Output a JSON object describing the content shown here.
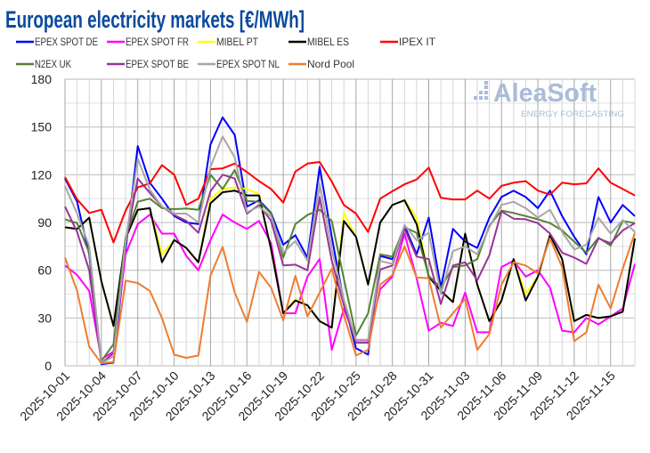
{
  "chart_data": {
    "type": "line",
    "title": "European electricity markets [€/MWh]",
    "xlabel": "",
    "ylabel": "",
    "ylim": [
      0,
      180
    ],
    "yticks": [
      0,
      30,
      60,
      90,
      120,
      150,
      180
    ],
    "grid": true,
    "legend_position": "top",
    "x": [
      "2025-10-01",
      "2025-10-02",
      "2025-10-03",
      "2025-10-04",
      "2025-10-05",
      "2025-10-06",
      "2025-10-07",
      "2025-10-08",
      "2025-10-09",
      "2025-10-10",
      "2025-10-11",
      "2025-10-12",
      "2025-10-13",
      "2025-10-14",
      "2025-10-15",
      "2025-10-16",
      "2025-10-17",
      "2025-10-18",
      "2025-10-19",
      "2025-10-20",
      "2025-10-21",
      "2025-10-22",
      "2025-10-23",
      "2025-10-24",
      "2025-10-25",
      "2025-10-26",
      "2025-10-27",
      "2025-10-28",
      "2025-10-29",
      "2025-10-30",
      "2025-10-31",
      "2025-11-01",
      "2025-11-02",
      "2025-11-03",
      "2025-11-04",
      "2025-11-05",
      "2025-11-06",
      "2025-11-07",
      "2025-11-08",
      "2025-11-09",
      "2025-11-10",
      "2025-11-11",
      "2025-11-12",
      "2025-11-13",
      "2025-11-14",
      "2025-11-15",
      "2025-11-16",
      "2025-11-17"
    ],
    "x_tick_labels": [
      "2025-10-01",
      "2025-10-04",
      "2025-10-07",
      "2025-10-10",
      "2025-10-13",
      "2025-10-16",
      "2025-10-19",
      "2025-10-22",
      "2025-10-25",
      "2025-10-28",
      "2025-10-31",
      "2025-11-03",
      "2025-11-06",
      "2025-11-09",
      "2025-11-12",
      "2025-11-15"
    ],
    "series": [
      {
        "name": "EPEX SPOT DE",
        "color": "#0000ff",
        "values": [
          117.6,
          103,
          70,
          1,
          2,
          73,
          138,
          115,
          105,
          94,
          90,
          89,
          139,
          156,
          145,
          100,
          104,
          96,
          76,
          82,
          68,
          125,
          81,
          40,
          11,
          7,
          69,
          67,
          88,
          70,
          93,
          49,
          86,
          78,
          74,
          93,
          106,
          110,
          106,
          99,
          110,
          94,
          81,
          70,
          106,
          90,
          101,
          94
        ]
      },
      {
        "name": "EPEX SPOT FR",
        "color": "#ff00ff",
        "values": [
          63,
          57,
          47,
          4,
          9,
          70,
          89,
          95,
          83,
          83,
          69,
          60,
          79,
          95,
          90,
          86,
          91,
          77,
          33,
          33,
          56,
          67,
          10,
          36,
          16,
          16,
          48,
          56,
          83,
          55,
          22,
          27,
          25,
          46,
          21,
          21,
          62,
          66,
          56,
          60,
          49,
          22,
          21,
          30,
          26,
          31,
          36,
          64
        ]
      },
      {
        "name": "MIBEL PT",
        "color": "#ffff00",
        "values": [
          87,
          86,
          93,
          53,
          25,
          80,
          98,
          99,
          70,
          79,
          74,
          65,
          105,
          111,
          112,
          111,
          108,
          73,
          33,
          42,
          38,
          28,
          24,
          96,
          81,
          51,
          90,
          101,
          104,
          93,
          56,
          47,
          40,
          83,
          51,
          28,
          41,
          67,
          45,
          56,
          82,
          67,
          28,
          32,
          30,
          31,
          34,
          80
        ]
      },
      {
        "name": "MIBEL ES",
        "color": "#000000",
        "values": [
          87,
          86,
          93,
          53,
          25,
          80,
          98,
          99,
          65,
          79,
          74,
          65,
          102,
          109,
          110,
          107,
          107,
          73,
          33,
          41,
          38,
          28,
          24,
          91,
          81,
          51,
          90,
          101,
          104,
          89,
          56,
          47,
          40,
          83,
          51,
          28,
          41,
          67,
          41,
          56,
          82,
          67,
          28,
          32,
          30,
          31,
          34,
          80
        ]
      },
      {
        "name": "IPEX IT",
        "color": "#ff0000",
        "values": [
          118.5,
          104.5,
          96,
          98,
          77.5,
          97.5,
          112,
          114.6,
          126,
          120,
          101,
          105,
          123.5,
          124,
          127,
          121.7,
          116,
          111,
          102.5,
          122,
          127,
          128,
          115.7,
          101,
          95.6,
          84,
          105,
          109.6,
          114,
          117,
          124.5,
          105.5,
          104.5,
          104.5,
          110,
          105,
          113,
          115,
          116,
          110,
          107.5,
          115,
          114,
          114.6,
          124,
          115,
          111,
          107
        ]
      },
      {
        "name": "N2EX UK",
        "color": "#548235",
        "values": [
          92,
          89.6,
          71,
          3,
          13.6,
          80.7,
          103,
          105,
          99,
          98.4,
          98.8,
          98,
          120,
          111,
          123,
          103.6,
          103,
          95.6,
          68,
          89,
          94.7,
          98,
          91,
          54.6,
          19,
          33,
          70,
          68.6,
          87,
          83.5,
          56.5,
          49,
          62,
          63,
          67,
          88,
          97.5,
          96,
          94,
          92,
          89.6,
          85,
          78,
          71,
          80.4,
          75.5,
          91,
          89.6
        ]
      },
      {
        "name": "EPEX SPOT BE",
        "color": "#993399",
        "values": [
          100,
          84,
          60,
          1.5,
          8,
          77,
          117.6,
          108.6,
          100,
          94.7,
          91,
          83.5,
          109.6,
          120,
          117.6,
          95.6,
          101,
          91,
          63,
          63.5,
          60,
          106,
          66,
          38,
          14.5,
          14.5,
          60.5,
          63,
          86,
          68.6,
          67,
          38.8,
          63,
          65,
          53.7,
          69.5,
          97,
          92.4,
          92,
          89.6,
          83,
          71,
          68,
          64,
          80,
          77,
          85,
          89.6
        ]
      },
      {
        "name": "EPEX SPOT NL",
        "color": "#a6a6a6",
        "values": [
          113,
          95.6,
          75,
          1.5,
          6,
          78,
          130,
          110.5,
          100,
          95.6,
          95.6,
          90,
          125,
          144,
          131,
          96.5,
          100,
          93.7,
          71,
          78.4,
          66,
          114.6,
          73,
          41.5,
          16.4,
          16.4,
          65.8,
          64,
          88.5,
          78.8,
          83.5,
          45,
          72,
          75,
          70,
          87,
          101,
          103,
          99,
          93,
          98,
          84,
          73,
          76,
          93,
          83,
          91.5,
          84
        ]
      },
      {
        "name": "Nord Pool",
        "color": "#ed7d31",
        "values": [
          68,
          47,
          12,
          1.5,
          2.4,
          53.5,
          52,
          47,
          30,
          7,
          5,
          6.5,
          56.5,
          74.7,
          46,
          27.6,
          59,
          49,
          28.5,
          56.5,
          31,
          46,
          61,
          32,
          6.5,
          10,
          51,
          57,
          75,
          55.5,
          55,
          24,
          33,
          42,
          10,
          20,
          51,
          65,
          63,
          58,
          80,
          62,
          15.5,
          21,
          51,
          36,
          61,
          83.5
        ]
      }
    ]
  },
  "logo": {
    "name": "AleaSoft",
    "tagline": "ENERGY FORECASTING",
    "color": "#a9bcd9"
  }
}
